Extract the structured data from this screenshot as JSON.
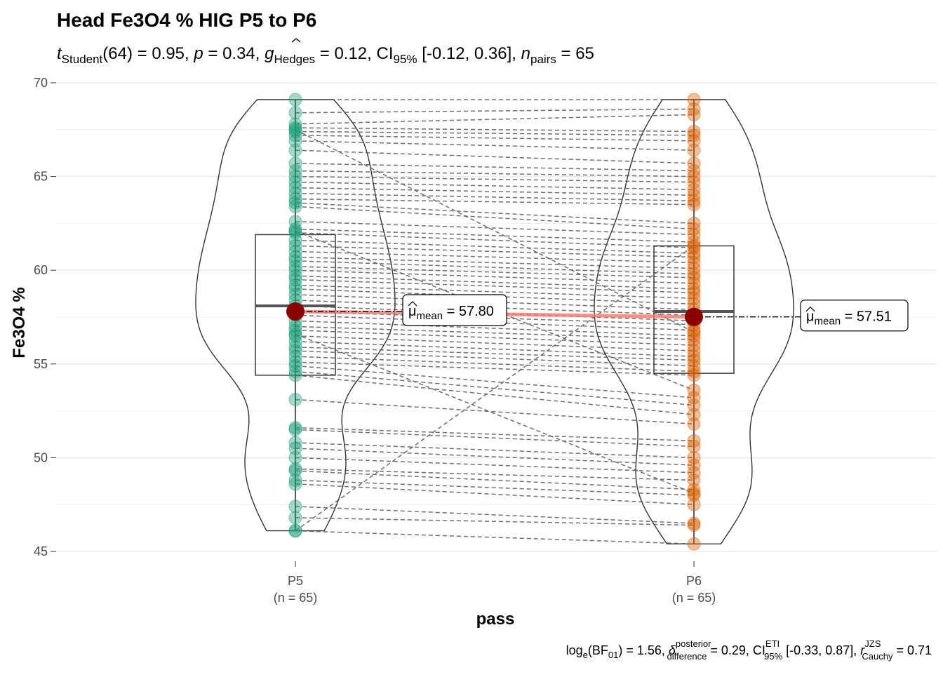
{
  "title": "Head Fe3O4 % HIG P5 to P6",
  "subtitle": {
    "t_label": "t",
    "t_sub": "Student",
    "t_value": "(64) = 0.95, ",
    "p_label": "p",
    "p_value": " = 0.34, ",
    "g_label": "g",
    "g_sub": "Hedges",
    "g_value": " = 0.12, CI",
    "ci_sub": "95%",
    "ci_value": " [-0.12, 0.36], ",
    "n_label": "n",
    "n_sub": "pairs",
    "n_value": " = 65"
  },
  "caption": {
    "log_label": "log",
    "log_sub": "e",
    "bf_label": "(BF",
    "bf_sub": "01",
    "bf_value": ") = 1.56, ",
    "delta_label": "δ",
    "delta_sup": "posterior",
    "delta_sub": "difference",
    "delta_value": " = 0.29, CI",
    "ci_sup": "ETI",
    "ci_sub": "95%",
    "ci_value": " [-0.33, 0.87], ",
    "r_label": "r",
    "r_sup": "JZS",
    "r_sub": "Cauchy",
    "r_value": " = 0.71"
  },
  "colors": {
    "p5_points": "#1B9E77",
    "p6_points": "#D95F02",
    "mean_point": "#8B0000",
    "mean_line": "#F8766D",
    "paired_lines": "#555555",
    "grid": "#EBEBEB"
  },
  "chart_data": {
    "type": "paired violin-box-scatter",
    "xlabel": "pass",
    "ylabel": "Fe3O4 %",
    "ylim": [
      45,
      70
    ],
    "y_ticks": [
      "45",
      "50",
      "55",
      "60",
      "65",
      "70"
    ],
    "grid": true,
    "categories": [
      {
        "label": "P5",
        "n_label": "(n = 65)"
      },
      {
        "label": "P6",
        "n_label": "(n = 65)"
      }
    ],
    "series": [
      {
        "name": "P5",
        "values": [
          69.1,
          68.4,
          67.8,
          67.6,
          67.4,
          67.2,
          66.9,
          66.4,
          65.7,
          65.3,
          65.0,
          64.7,
          64.4,
          64.1,
          63.8,
          63.6,
          63.4,
          62.6,
          62.2,
          62.0,
          61.6,
          61.3,
          61.0,
          60.7,
          60.5,
          60.2,
          60.0,
          59.7,
          59.5,
          59.2,
          59.0,
          58.7,
          58.4,
          58.1,
          57.8,
          57.6,
          57.3,
          57.0,
          56.8,
          56.5,
          56.2,
          55.9,
          55.7,
          55.4,
          55.1,
          54.9,
          54.6,
          54.4,
          53.1,
          51.6,
          51.5,
          50.8,
          50.5,
          50.0,
          49.4,
          49.3,
          48.8,
          48.6,
          47.4,
          46.8,
          46.1,
          46.1,
          67.5,
          62.1,
          56.6
        ],
        "box": {
          "q1": 54.4,
          "median": 58.1,
          "q3": 61.9,
          "min": 46.1,
          "max": 69.1
        },
        "mean": 57.8,
        "mean_label": "57.80"
      },
      {
        "name": "P6",
        "values": [
          69.1,
          68.6,
          68.3,
          67.4,
          67.2,
          66.9,
          66.4,
          65.7,
          65.3,
          65.0,
          64.7,
          64.3,
          64.0,
          63.7,
          63.5,
          62.5,
          62.2,
          61.9,
          61.5,
          61.2,
          60.9,
          60.7,
          60.4,
          60.1,
          59.8,
          59.6,
          59.3,
          59.0,
          58.8,
          58.5,
          58.2,
          57.9,
          57.6,
          57.3,
          57.1,
          56.8,
          56.5,
          56.3,
          56.0,
          55.7,
          55.4,
          55.2,
          54.9,
          54.6,
          54.4,
          53.2,
          52.8,
          52.3,
          51.8,
          50.9,
          50.6,
          50.0,
          49.6,
          49.2,
          48.8,
          48.3,
          48.0,
          47.5,
          46.5,
          46.4,
          45.4,
          61.3,
          56.7,
          53.6,
          48.1
        ],
        "box": {
          "q1": 54.5,
          "median": 57.8,
          "q3": 61.3,
          "min": 45.4,
          "max": 69.1
        },
        "mean": 57.51,
        "mean_label": "57.51"
      }
    ],
    "mean_annotation_prefix": "μ",
    "mean_annotation_sub": "mean",
    "mean_annotation_eq": " = "
  }
}
